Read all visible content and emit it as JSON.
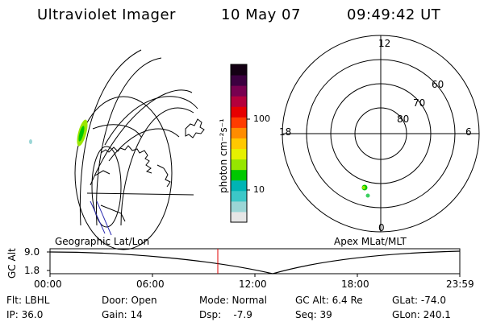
{
  "header": {
    "instrument": "Ultraviolet Imager",
    "date": "10 May 07",
    "time": "09:49:42 UT"
  },
  "map_labels": {
    "left": "Geographic Lat/Lon",
    "right": "Apex MLat/MLT"
  },
  "polar_plot": {
    "mlt_labels": [
      "12",
      "6",
      "0",
      "18"
    ],
    "lat_labels": [
      "60",
      "70",
      "80"
    ]
  },
  "colorbar": {
    "unit_label": "photon cm⁻²s⁻¹",
    "ticks": [
      "100",
      "10"
    ],
    "colors": [
      "#e6e6e6",
      "#9bd6d6",
      "#3cc8c8",
      "#00b4b4",
      "#00c800",
      "#96e600",
      "#e6f000",
      "#ffc800",
      "#ff8c00",
      "#ff3c00",
      "#e60000",
      "#b4003c",
      "#780050",
      "#3c0040",
      "#140014"
    ]
  },
  "altitude_plot": {
    "axis_label": "GC Alt",
    "y_ticks": [
      "9.0",
      "1.8"
    ],
    "x_ticks": [
      "00:00",
      "06:00",
      "12:00",
      "18:00",
      "23:59"
    ],
    "current_time_color": "#e00000"
  },
  "status": {
    "row1": {
      "filter": "Flt: LBHL",
      "door": "Door: Open",
      "mode": "Mode: Normal",
      "gc_alt": "GC Alt: 6.4 Re",
      "glat": "GLat: -74.0"
    },
    "row2": {
      "ip": "IP: 36.0",
      "gain": "Gain: 14",
      "dsp": "Dsp:    -7.9",
      "seq": "Seq: 39",
      "glon": "GLon: 240.1"
    }
  }
}
